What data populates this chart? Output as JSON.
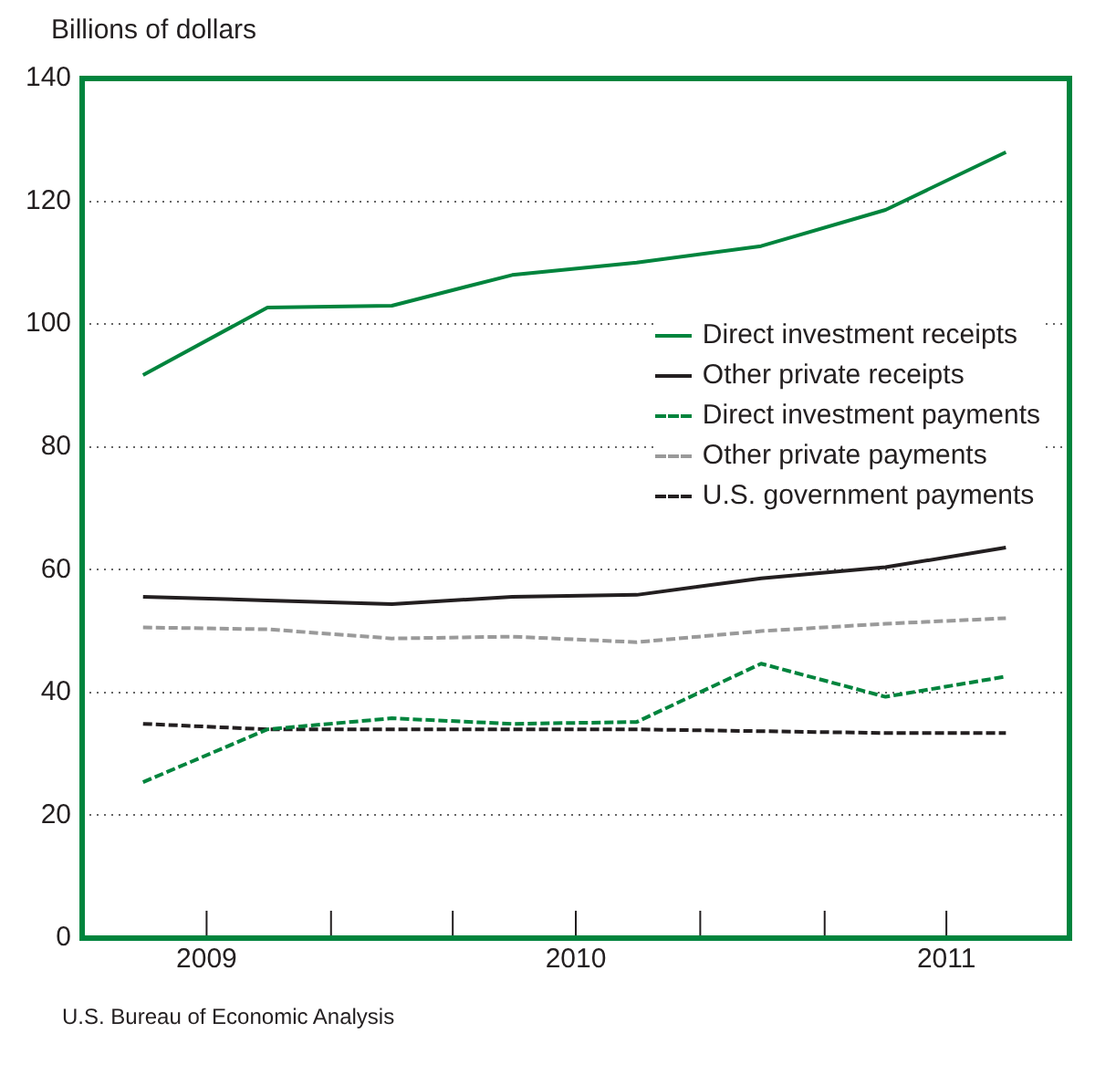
{
  "chart_data": {
    "type": "line",
    "ylabel": "Billions of dollars",
    "annotations": [
      "U.S. Bureau of Economic Analysis"
    ],
    "x": [
      "2009-08-15",
      "2009-11-15",
      "2010-02-15",
      "2010-05-15",
      "2010-08-15",
      "2010-11-15",
      "2011-02-15",
      "2011-05-15"
    ],
    "xlim": [
      "2009-07-01",
      "2011-07-01"
    ],
    "xticks": [
      {
        "value": "2009-10-01",
        "label": "2009"
      },
      {
        "value": "2010-01-01",
        "label": null
      },
      {
        "value": "2010-04-01",
        "label": null
      },
      {
        "value": "2010-07-01",
        "label": "2010"
      },
      {
        "value": "2010-10-01",
        "label": null
      },
      {
        "value": "2011-01-01",
        "label": null
      },
      {
        "value": "2011-04-01",
        "label": "2011"
      }
    ],
    "ylim": [
      0,
      140
    ],
    "yticks": [
      0,
      20,
      40,
      60,
      80,
      100,
      120,
      140
    ],
    "grid": "y",
    "legend": "right",
    "marker": "none",
    "series": [
      {
        "name": "Direct investment receipts",
        "color": "#00843d",
        "line_style": "solid",
        "values": [
          91.7,
          102.7,
          103,
          108,
          110,
          112.7,
          118.6,
          128
        ]
      },
      {
        "name": "Other private receipts",
        "color": "#231f20",
        "line_style": "solid",
        "values": [
          55.6,
          55,
          54.4,
          55.6,
          55.9,
          58.6,
          60.4,
          63.6
        ]
      },
      {
        "name": "Direct investment payments",
        "color": "#00843d",
        "line_style": "dashed",
        "values": [
          25.4,
          34,
          35.8,
          34.9,
          35.2,
          44.7,
          39.3,
          42.6
        ]
      },
      {
        "name": "Other private payments",
        "color": "#9a9a9a",
        "line_style": "dashed",
        "values": [
          50.6,
          50.3,
          48.8,
          49.1,
          48.2,
          50,
          51.2,
          52.1
        ]
      },
      {
        "name": "U.S. government payments",
        "color": "#231f20",
        "line_style": "dashed",
        "values": [
          34.9,
          34,
          34,
          34,
          34,
          33.7,
          33.4,
          33.4
        ]
      }
    ]
  }
}
